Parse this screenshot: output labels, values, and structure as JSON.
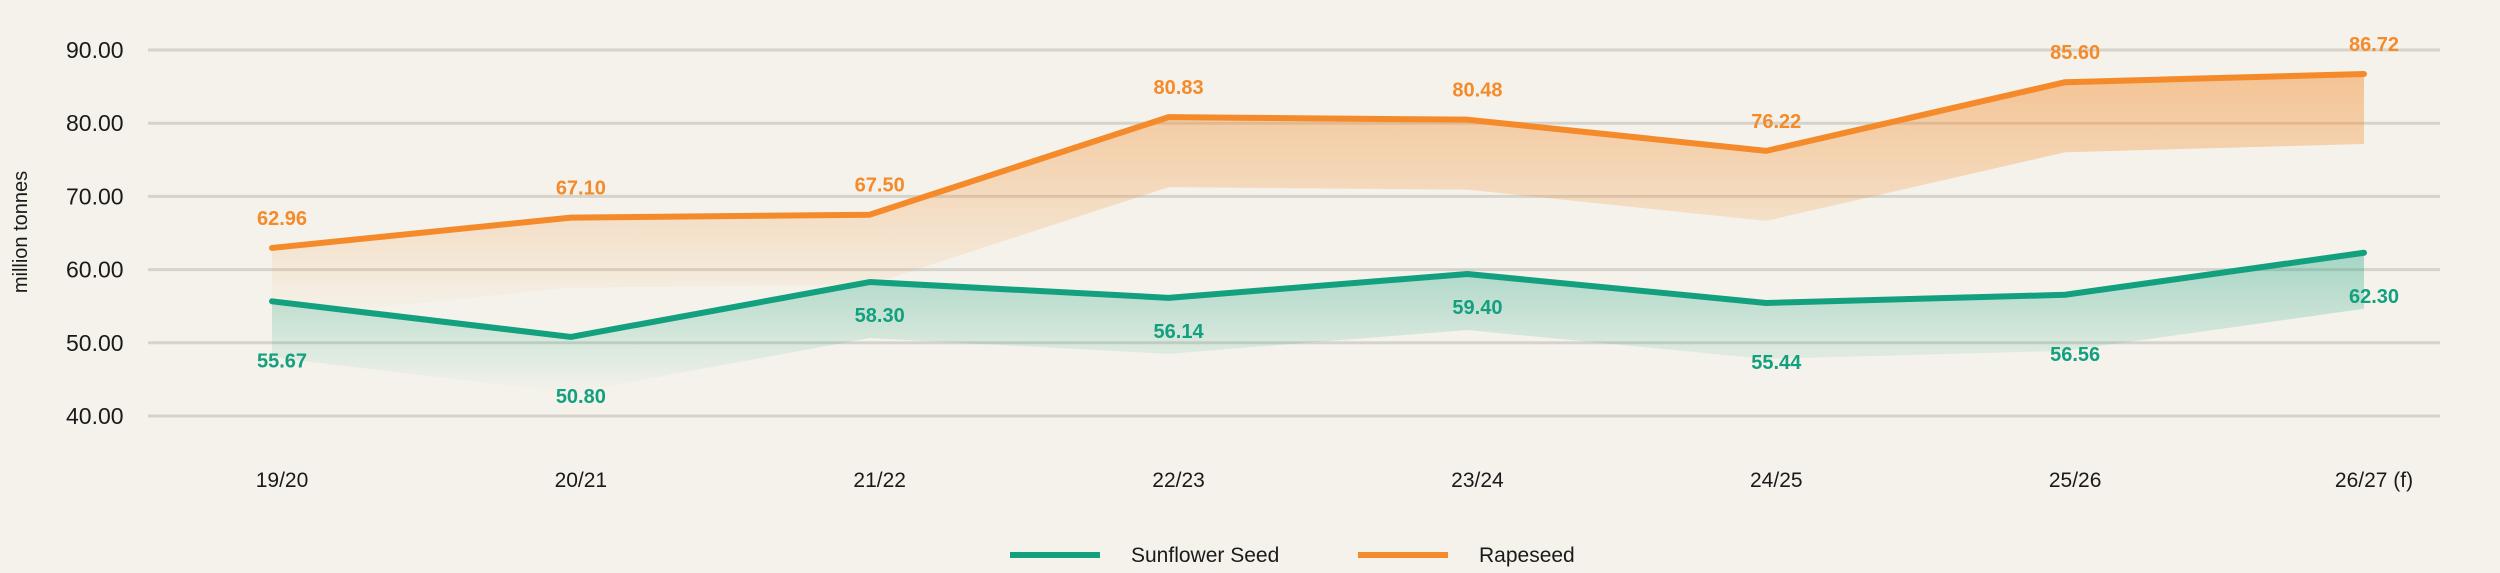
{
  "chart_data": {
    "type": "area",
    "ylabel": "million tonnes",
    "ylim": [
      40,
      90
    ],
    "y_ticks": [
      "40.00",
      "50.00",
      "60.00",
      "70.00",
      "80.00",
      "90.00"
    ],
    "grid": true,
    "legend_position": "bottom-center",
    "categories": [
      "19/20",
      "20/21",
      "21/22",
      "22/23",
      "23/24",
      "24/25",
      "25/26",
      "26/27 (f)"
    ],
    "series": [
      {
        "name": "Sunflower Seed",
        "color": "#12a07f",
        "values": [
          55.67,
          50.8,
          58.3,
          56.14,
          59.4,
          55.44,
          56.56,
          62.3
        ],
        "labels": [
          "55.67",
          "50.80",
          "58.30",
          "56.14",
          "59.40",
          "55.44",
          "56.56",
          "62.30"
        ]
      },
      {
        "name": "Rapeseed",
        "color": "#f58a2a",
        "values": [
          62.96,
          67.1,
          67.5,
          80.83,
          80.48,
          76.22,
          85.6,
          86.72
        ],
        "labels": [
          "62.96",
          "67.10",
          "67.50",
          "80.83",
          "80.48",
          "76.22",
          "85.60",
          "86.72"
        ]
      }
    ]
  }
}
